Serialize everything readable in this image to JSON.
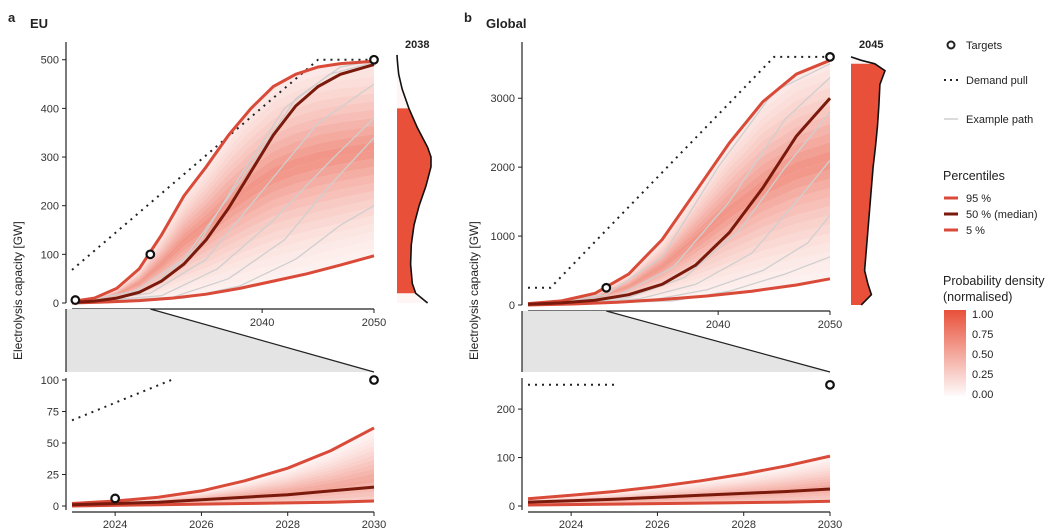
{
  "colors": {
    "p95": "#d94a38",
    "p50": "#7a1a0c",
    "p5": "#d94a38",
    "density": "#e8503a",
    "example": "#cfcfcf",
    "zoom": "#e4e4e4"
  },
  "legend": {
    "targets": "Targets",
    "demand": "Demand pull",
    "example": "Example path",
    "percentiles_title": "Percentiles",
    "p95": "95 %",
    "p50": "50 % (median)",
    "p5": "5 %",
    "density_title_1": "Probability density",
    "density_title_2": "(normalised)",
    "density_ticks": [
      "1.00",
      "0.75",
      "0.50",
      "0.25",
      "0.00"
    ]
  },
  "chart_data": [
    {
      "panel": "a",
      "title": "EU",
      "type": "line",
      "ylabel": "Electrolysis capacity [GW]",
      "xlim": [
        2023,
        2050
      ],
      "ylim": [
        0,
        520
      ],
      "xticks": [
        2030,
        2040,
        2050
      ],
      "yticks": [
        0,
        100,
        200,
        300,
        400,
        500
      ],
      "density_peak_label": "2038",
      "targets": [
        {
          "x": 2023.3,
          "y": 6
        },
        {
          "x": 2030,
          "y": 100
        },
        {
          "x": 2050,
          "y": 500
        }
      ],
      "demand_pull": {
        "x": [
          2023,
          2045,
          2050
        ],
        "y": [
          68,
          500,
          500
        ]
      },
      "series": [
        {
          "name": "95 %",
          "x": [
            2023,
            2025,
            2027,
            2029,
            2031,
            2033,
            2035,
            2037,
            2039,
            2041,
            2043,
            2045,
            2047,
            2050
          ],
          "y": [
            3,
            10,
            30,
            70,
            140,
            220,
            280,
            345,
            400,
            445,
            470,
            485,
            492,
            497
          ]
        },
        {
          "name": "50 % (median)",
          "x": [
            2023,
            2025,
            2027,
            2029,
            2031,
            2033,
            2035,
            2037,
            2039,
            2041,
            2043,
            2045,
            2047,
            2050
          ],
          "y": [
            1,
            4,
            10,
            22,
            45,
            80,
            130,
            195,
            270,
            345,
            405,
            445,
            470,
            490
          ]
        },
        {
          "name": "5 %",
          "x": [
            2023,
            2026,
            2029,
            2032,
            2035,
            2038,
            2041,
            2044,
            2047,
            2050
          ],
          "y": [
            0,
            2,
            5,
            10,
            18,
            30,
            45,
            60,
            78,
            97
          ]
        }
      ],
      "example_paths": [
        {
          "x": [
            2023,
            2028,
            2033,
            2038,
            2043,
            2047,
            2050
          ],
          "y": [
            0,
            15,
            90,
            250,
            420,
            485,
            498
          ]
        },
        {
          "x": [
            2023,
            2030,
            2035,
            2040,
            2045,
            2050
          ],
          "y": [
            0,
            20,
            90,
            230,
            370,
            450
          ]
        },
        {
          "x": [
            2023,
            2031,
            2036,
            2041,
            2046,
            2050
          ],
          "y": [
            0,
            15,
            70,
            170,
            290,
            380
          ]
        },
        {
          "x": [
            2023,
            2032,
            2037,
            2042,
            2046,
            2050
          ],
          "y": [
            0,
            12,
            50,
            130,
            240,
            340
          ]
        },
        {
          "x": [
            2023,
            2033,
            2038,
            2043,
            2047,
            2050
          ],
          "y": [
            0,
            10,
            35,
            90,
            160,
            200
          ]
        },
        {
          "x": [
            2023,
            2030,
            2034,
            2038,
            2042,
            2046,
            2050
          ],
          "y": [
            0,
            30,
            110,
            260,
            400,
            470,
            495
          ]
        }
      ],
      "density_profile": {
        "y": [
          0,
          20,
          40,
          80,
          120,
          160,
          200,
          240,
          280,
          300,
          320,
          360,
          400,
          440,
          470,
          490,
          500,
          510
        ],
        "v": [
          0.9,
          0.55,
          0.45,
          0.4,
          0.42,
          0.5,
          0.65,
          0.85,
          1.0,
          1.0,
          0.9,
          0.6,
          0.35,
          0.15,
          0.05,
          0.02,
          0.01,
          0
        ]
      },
      "zoom": {
        "xlim": [
          2023,
          2030
        ],
        "ylim": [
          0,
          100
        ],
        "xticks": [
          2024,
          2026,
          2028,
          2030
        ],
        "yticks": [
          0,
          25,
          50,
          75,
          100
        ],
        "targets": [
          {
            "x": 2024,
            "y": 6
          },
          {
            "x": 2030,
            "y": 100
          }
        ],
        "demand_pull": {
          "x": [
            2023,
            2025.3
          ],
          "y": [
            68,
            100
          ]
        },
        "series": [
          {
            "name": "95 %",
            "x": [
              2023,
              2024,
              2025,
              2026,
              2027,
              2028,
              2029,
              2030
            ],
            "y": [
              2,
              4,
              7,
              12,
              20,
              30,
              44,
              62
            ]
          },
          {
            "name": "50 % (median)",
            "x": [
              2023,
              2024,
              2025,
              2026,
              2027,
              2028,
              2029,
              2030
            ],
            "y": [
              1,
              2,
              3,
              5,
              7,
              9,
              12,
              15
            ]
          },
          {
            "name": "5 %",
            "x": [
              2023,
              2025,
              2027,
              2029,
              2030
            ],
            "y": [
              0,
              1,
              2,
              3,
              4
            ]
          }
        ]
      }
    },
    {
      "panel": "b",
      "title": "Global",
      "type": "line",
      "ylabel": "Electrolysis capacity [GW]",
      "xlim": [
        2023,
        2050
      ],
      "ylim": [
        0,
        3700
      ],
      "xticks": [
        2030,
        2040,
        2050
      ],
      "yticks": [
        0,
        1000,
        2000,
        3000
      ],
      "density_peak_label": "2045",
      "targets": [
        {
          "x": 2030,
          "y": 250
        },
        {
          "x": 2050,
          "y": 3600
        }
      ],
      "demand_pull": {
        "x": [
          2023,
          2025,
          2045,
          2050
        ],
        "y": [
          250,
          250,
          3600,
          3600
        ]
      },
      "series": [
        {
          "name": "95 %",
          "x": [
            2023,
            2026,
            2029,
            2032,
            2035,
            2038,
            2041,
            2044,
            2047,
            2050
          ],
          "y": [
            20,
            60,
            170,
            450,
            950,
            1650,
            2350,
            2950,
            3350,
            3550
          ]
        },
        {
          "name": "50 % (median)",
          "x": [
            2023,
            2026,
            2029,
            2032,
            2035,
            2038,
            2041,
            2044,
            2047,
            2050
          ],
          "y": [
            10,
            30,
            70,
            150,
            300,
            580,
            1050,
            1700,
            2450,
            3000
          ]
        },
        {
          "name": "5 %",
          "x": [
            2023,
            2027,
            2031,
            2035,
            2039,
            2043,
            2047,
            2050
          ],
          "y": [
            0,
            15,
            40,
            80,
            130,
            200,
            290,
            380
          ]
        }
      ],
      "example_paths": [
        {
          "x": [
            2023,
            2030,
            2035,
            2040,
            2045,
            2050
          ],
          "y": [
            0,
            150,
            700,
            2000,
            3100,
            3500
          ]
        },
        {
          "x": [
            2023,
            2031,
            2036,
            2041,
            2046,
            2050
          ],
          "y": [
            0,
            130,
            550,
            1500,
            2700,
            3300
          ]
        },
        {
          "x": [
            2023,
            2032,
            2037,
            2042,
            2046,
            2050
          ],
          "y": [
            0,
            110,
            400,
            1100,
            2000,
            2800
          ]
        },
        {
          "x": [
            2023,
            2033,
            2038,
            2043,
            2047,
            2050
          ],
          "y": [
            0,
            90,
            300,
            750,
            1500,
            2100
          ]
        },
        {
          "x": [
            2023,
            2034,
            2039,
            2044,
            2048,
            2050
          ],
          "y": [
            0,
            70,
            220,
            500,
            900,
            1300
          ]
        },
        {
          "x": [
            2023,
            2036,
            2041,
            2046,
            2050
          ],
          "y": [
            0,
            60,
            200,
            450,
            700
          ]
        }
      ],
      "density_profile": {
        "y": [
          0,
          150,
          300,
          500,
          800,
          1100,
          1400,
          1700,
          2000,
          2300,
          2600,
          2900,
          3200,
          3400,
          3500,
          3550,
          3600
        ],
        "v": [
          0.3,
          0.6,
          0.5,
          0.4,
          0.45,
          0.5,
          0.55,
          0.6,
          0.65,
          0.72,
          0.78,
          0.82,
          0.85,
          1.0,
          0.7,
          0.3,
          0
        ]
      },
      "zoom": {
        "xlim": [
          2023,
          2030
        ],
        "ylim": [
          0,
          260
        ],
        "xticks": [
          2024,
          2026,
          2028,
          2030
        ],
        "yticks": [
          0,
          100,
          200
        ],
        "targets": [
          {
            "x": 2030,
            "y": 250
          }
        ],
        "demand_pull": {
          "x": [
            2023,
            2025
          ],
          "y": [
            250,
            250
          ]
        },
        "series": [
          {
            "name": "95 %",
            "x": [
              2023,
              2024,
              2025,
              2026,
              2027,
              2028,
              2029,
              2030
            ],
            "y": [
              15,
              22,
              30,
              40,
              52,
              66,
              83,
              103
            ]
          },
          {
            "name": "50 % (median)",
            "x": [
              2023,
              2024,
              2025,
              2026,
              2027,
              2028,
              2029,
              2030
            ],
            "y": [
              8,
              11,
              14,
              18,
              22,
              26,
              30,
              35
            ]
          },
          {
            "name": "5 %",
            "x": [
              2023,
              2025,
              2027,
              2029,
              2030
            ],
            "y": [
              2,
              4,
              6,
              8,
              10
            ]
          }
        ]
      }
    }
  ]
}
